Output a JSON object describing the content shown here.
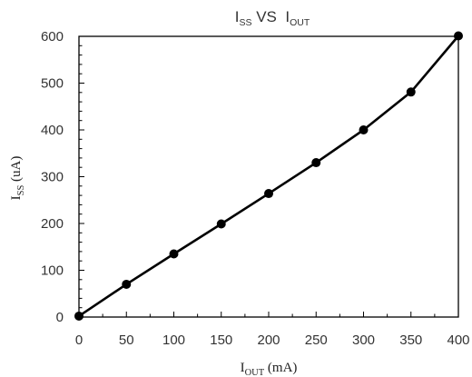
{
  "chart_data": {
    "type": "line",
    "title": {
      "main": "I",
      "sub1": "SS",
      "mid": " VS  I",
      "sub2": "OUT"
    },
    "xlabel": {
      "main": "I",
      "sub": "OUT",
      "tail": " (mA)"
    },
    "ylabel": {
      "main": "I",
      "sub": "SS",
      "tail": " (uA)"
    },
    "xlim": [
      0,
      400
    ],
    "ylim": [
      0,
      600
    ],
    "xticks": [
      "0",
      "50",
      "100",
      "150",
      "200",
      "250",
      "300",
      "350",
      "400"
    ],
    "yticks": [
      "0",
      "100",
      "200",
      "300",
      "400",
      "500",
      "600"
    ],
    "grid": "none",
    "legend": "none",
    "series": [
      {
        "x": [
          0,
          50,
          100,
          150,
          200,
          250,
          300,
          350,
          400
        ],
        "y": [
          2,
          70,
          135,
          199,
          264,
          330,
          400,
          481,
          601
        ]
      }
    ],
    "colors": {
      "line": "#000000",
      "marker": "#000000",
      "axis": "#000000",
      "text": "#333333"
    }
  }
}
